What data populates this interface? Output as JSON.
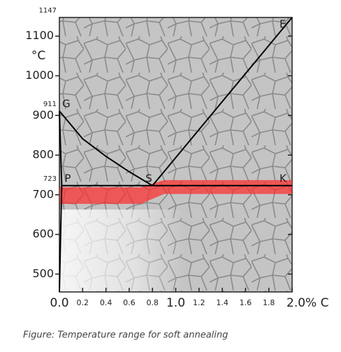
{
  "chart_data": {
    "type": "line",
    "caption": "Figure: Temperature range for soft annealing",
    "y_label": "°C",
    "xlim": [
      0,
      2.0
    ],
    "ylim": [
      455,
      1147
    ],
    "xticks": [
      {
        "value": 0,
        "label": "0.0"
      },
      0.2,
      0.4,
      0.6,
      0.8,
      {
        "value": 1.0,
        "label": "1.0"
      },
      1.2,
      1.4,
      1.6,
      1.8,
      {
        "value": 2.0,
        "label": "2.0% C"
      }
    ],
    "yticks": [
      500,
      600,
      700,
      800,
      900,
      1000,
      1100
    ],
    "marked_temperatures": [
      723,
      911,
      1147
    ],
    "series": [
      {
        "color": "#000000",
        "x": [
          0,
          0.2,
          0.4,
          0.6,
          0.8
        ],
        "values": [
          911,
          841,
          797,
          758,
          723
        ]
      },
      {
        "color": "#000000",
        "x": [
          0.8,
          2.0
        ],
        "values": [
          723,
          1147
        ]
      },
      {
        "color": "#000000",
        "x": [
          0.02,
          2.0
        ],
        "values": [
          723,
          723
        ]
      },
      {
        "color": "#000000",
        "x": [
          0,
          0.02,
          0
        ],
        "values": [
          911,
          723,
          455
        ]
      }
    ],
    "points": [
      {
        "label": "G",
        "x": 0,
        "y": 911
      },
      {
        "label": "P",
        "x": 0.02,
        "y": 723
      },
      {
        "label": "S",
        "x": 0.8,
        "y": 723
      },
      {
        "label": "E",
        "x": 2.0,
        "y": 1147
      },
      {
        "label": "K",
        "x": 2.0,
        "y": 723
      }
    ],
    "band": {
      "color": "#ff2a2a",
      "x": [
        0,
        0.7,
        0.9,
        2.0
      ],
      "upper": [
        719,
        719,
        737,
        737
      ],
      "lower": [
        677,
        677,
        702,
        702
      ]
    }
  }
}
